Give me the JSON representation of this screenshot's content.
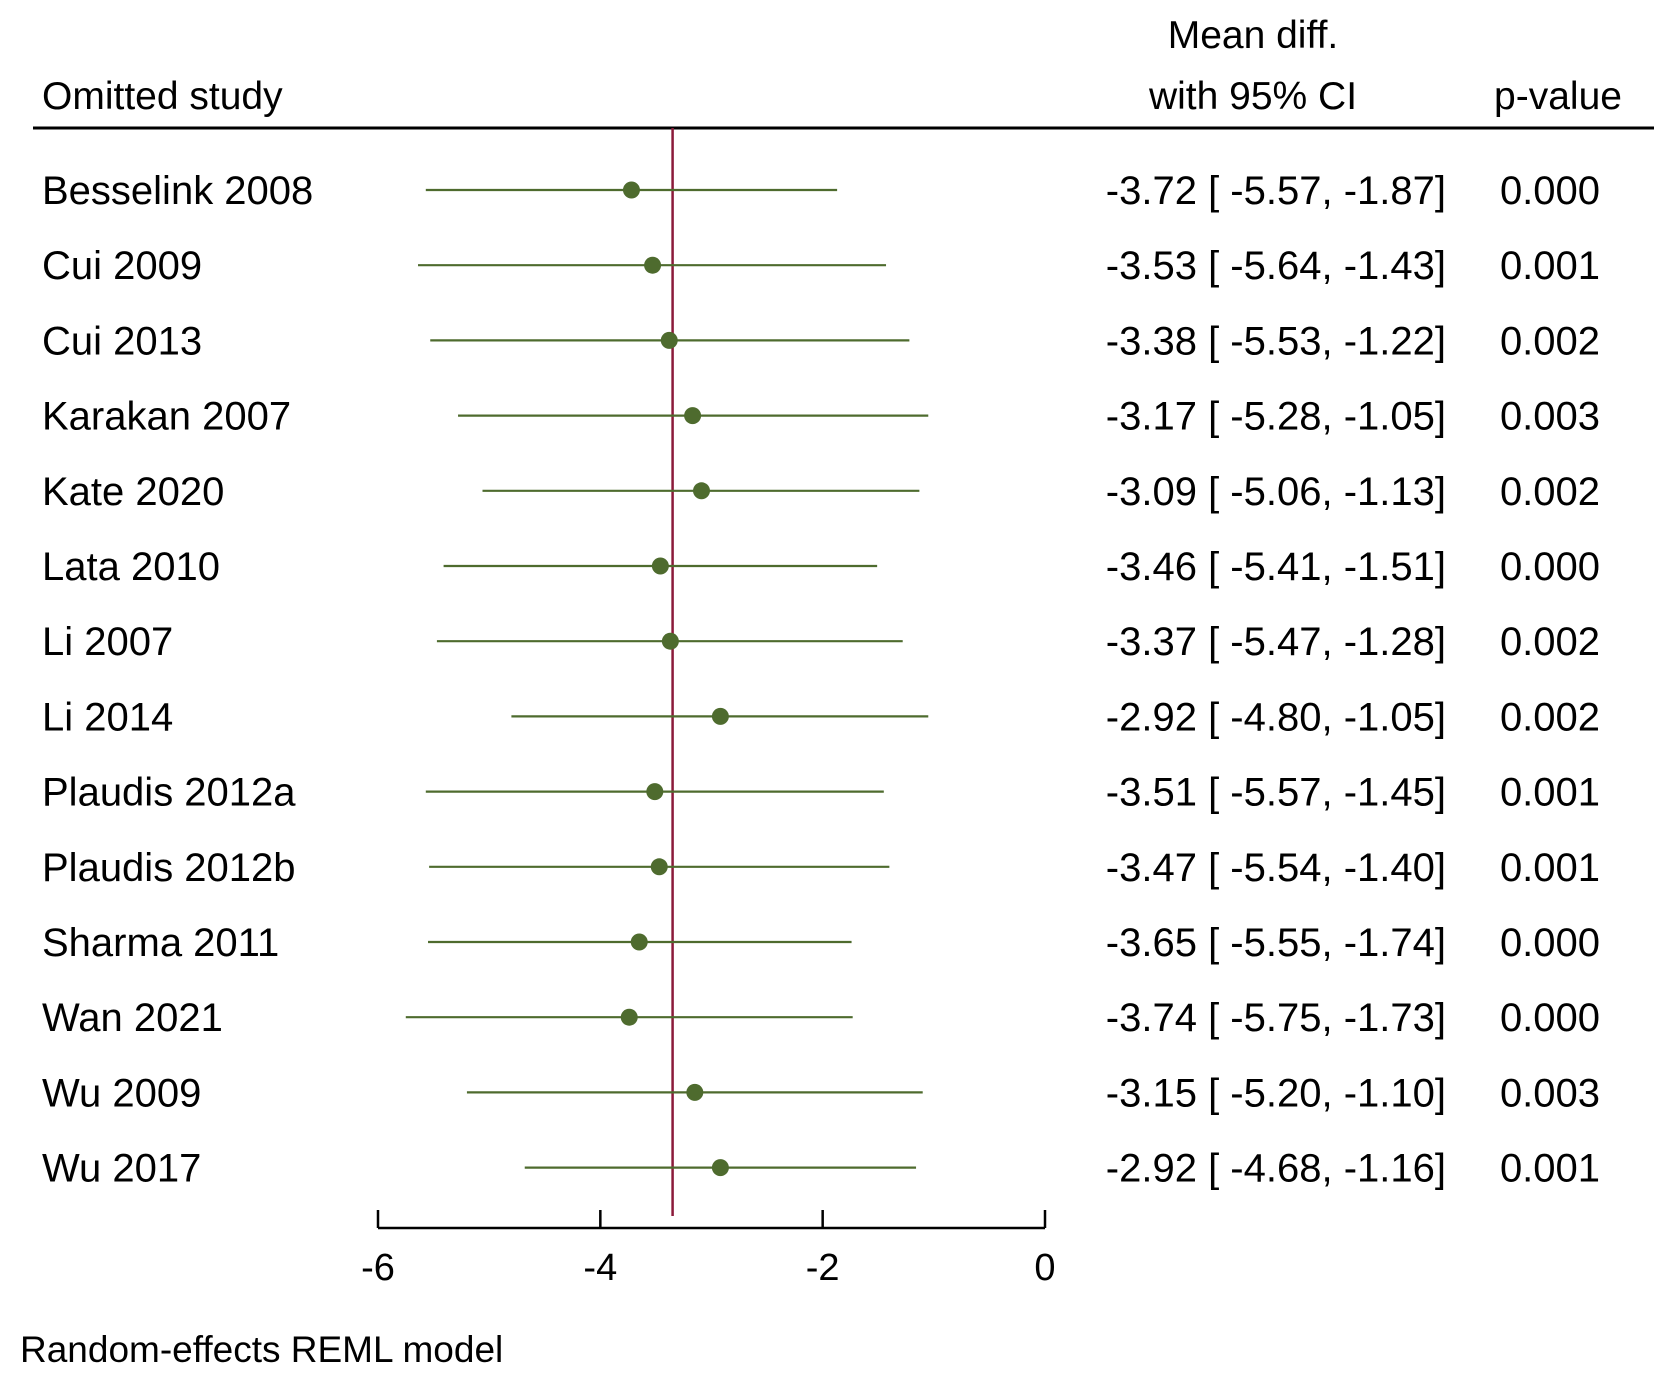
{
  "colors": {
    "marker": "#4e6b2e",
    "ci_line": "#4e6b2e",
    "reference_line": "#8b1a3a",
    "axis": "#000000",
    "text": "#000000"
  },
  "header": {
    "study_col": "Omitted study",
    "effect_col_line1": "Mean diff.",
    "effect_col_line2": "with 95% CI",
    "p_col": "p-value"
  },
  "footer": {
    "model_note": "Random-effects REML model"
  },
  "chart_data": {
    "type": "forest",
    "xlim": [
      -6,
      0
    ],
    "xticks": [
      -6,
      -4,
      -2,
      0
    ],
    "xtick_labels": [
      "-6",
      "-4",
      "-2",
      "0"
    ],
    "reference_line": -3.35,
    "grid": false,
    "studies": [
      {
        "label": "Besselink 2008",
        "estimate": -3.72,
        "lower": -5.57,
        "upper": -1.87,
        "ci_text": "-3.72 [ -5.57,  -1.87]",
        "p_value": "0.000"
      },
      {
        "label": "Cui 2009",
        "estimate": -3.53,
        "lower": -5.64,
        "upper": -1.43,
        "ci_text": "-3.53 [ -5.64,  -1.43]",
        "p_value": "0.001"
      },
      {
        "label": "Cui 2013",
        "estimate": -3.38,
        "lower": -5.53,
        "upper": -1.22,
        "ci_text": "-3.38 [ -5.53,  -1.22]",
        "p_value": "0.002"
      },
      {
        "label": "Karakan 2007",
        "estimate": -3.17,
        "lower": -5.28,
        "upper": -1.05,
        "ci_text": "-3.17 [ -5.28,  -1.05]",
        "p_value": "0.003"
      },
      {
        "label": "Kate 2020",
        "estimate": -3.09,
        "lower": -5.06,
        "upper": -1.13,
        "ci_text": "-3.09 [ -5.06,  -1.13]",
        "p_value": "0.002"
      },
      {
        "label": "Lata 2010",
        "estimate": -3.46,
        "lower": -5.41,
        "upper": -1.51,
        "ci_text": "-3.46 [ -5.41,  -1.51]",
        "p_value": "0.000"
      },
      {
        "label": "Li 2007",
        "estimate": -3.37,
        "lower": -5.47,
        "upper": -1.28,
        "ci_text": "-3.37 [ -5.47,  -1.28]",
        "p_value": "0.002"
      },
      {
        "label": "Li 2014",
        "estimate": -2.92,
        "lower": -4.8,
        "upper": -1.05,
        "ci_text": "-2.92 [ -4.80,  -1.05]",
        "p_value": "0.002"
      },
      {
        "label": "Plaudis 2012a",
        "estimate": -3.51,
        "lower": -5.57,
        "upper": -1.45,
        "ci_text": "-3.51 [ -5.57,  -1.45]",
        "p_value": "0.001"
      },
      {
        "label": "Plaudis 2012b",
        "estimate": -3.47,
        "lower": -5.54,
        "upper": -1.4,
        "ci_text": "-3.47 [ -5.54,  -1.40]",
        "p_value": "0.001"
      },
      {
        "label": "Sharma 2011",
        "estimate": -3.65,
        "lower": -5.55,
        "upper": -1.74,
        "ci_text": "-3.65 [ -5.55,  -1.74]",
        "p_value": "0.000"
      },
      {
        "label": "Wan 2021",
        "estimate": -3.74,
        "lower": -5.75,
        "upper": -1.73,
        "ci_text": "-3.74 [ -5.75,  -1.73]",
        "p_value": "0.000"
      },
      {
        "label": "Wu 2009",
        "estimate": -3.15,
        "lower": -5.2,
        "upper": -1.1,
        "ci_text": "-3.15 [ -5.20,  -1.10]",
        "p_value": "0.003"
      },
      {
        "label": "Wu 2017",
        "estimate": -2.92,
        "lower": -4.68,
        "upper": -1.16,
        "ci_text": "-2.92 [ -4.68,  -1.16]",
        "p_value": "0.001"
      }
    ]
  }
}
